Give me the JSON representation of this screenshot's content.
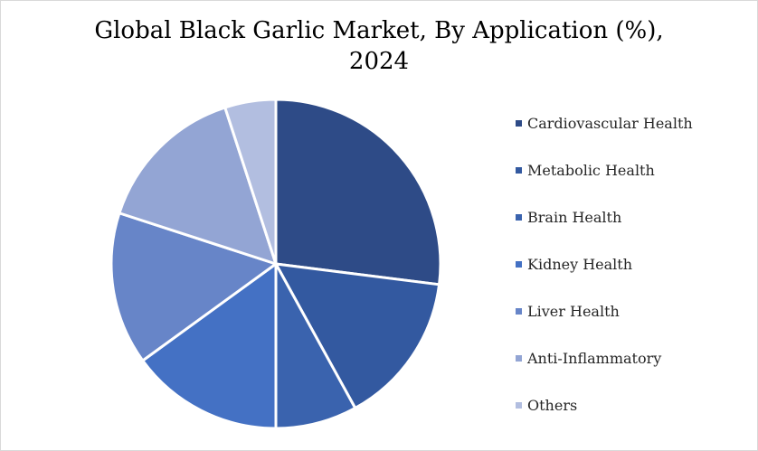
{
  "chart_data": {
    "type": "pie",
    "title_lines": [
      "Global Black Garlic Market, By Application (%),",
      "2024"
    ],
    "categories": [
      "Cardiovascular Health",
      "Metabolic Health",
      "Brain Health",
      "Kidney Health",
      "Liver Health",
      "Anti-Inflammatory",
      "Others"
    ],
    "values": [
      27,
      15,
      8,
      15,
      15,
      15,
      5
    ],
    "colors": [
      "#2E4B87",
      "#3359A0",
      "#3A63AE",
      "#4471C4",
      "#6785C8",
      "#93A5D4",
      "#B2BEE0"
    ],
    "legend_position": "right",
    "start_angle_deg": 0,
    "direction": "clockwise"
  }
}
